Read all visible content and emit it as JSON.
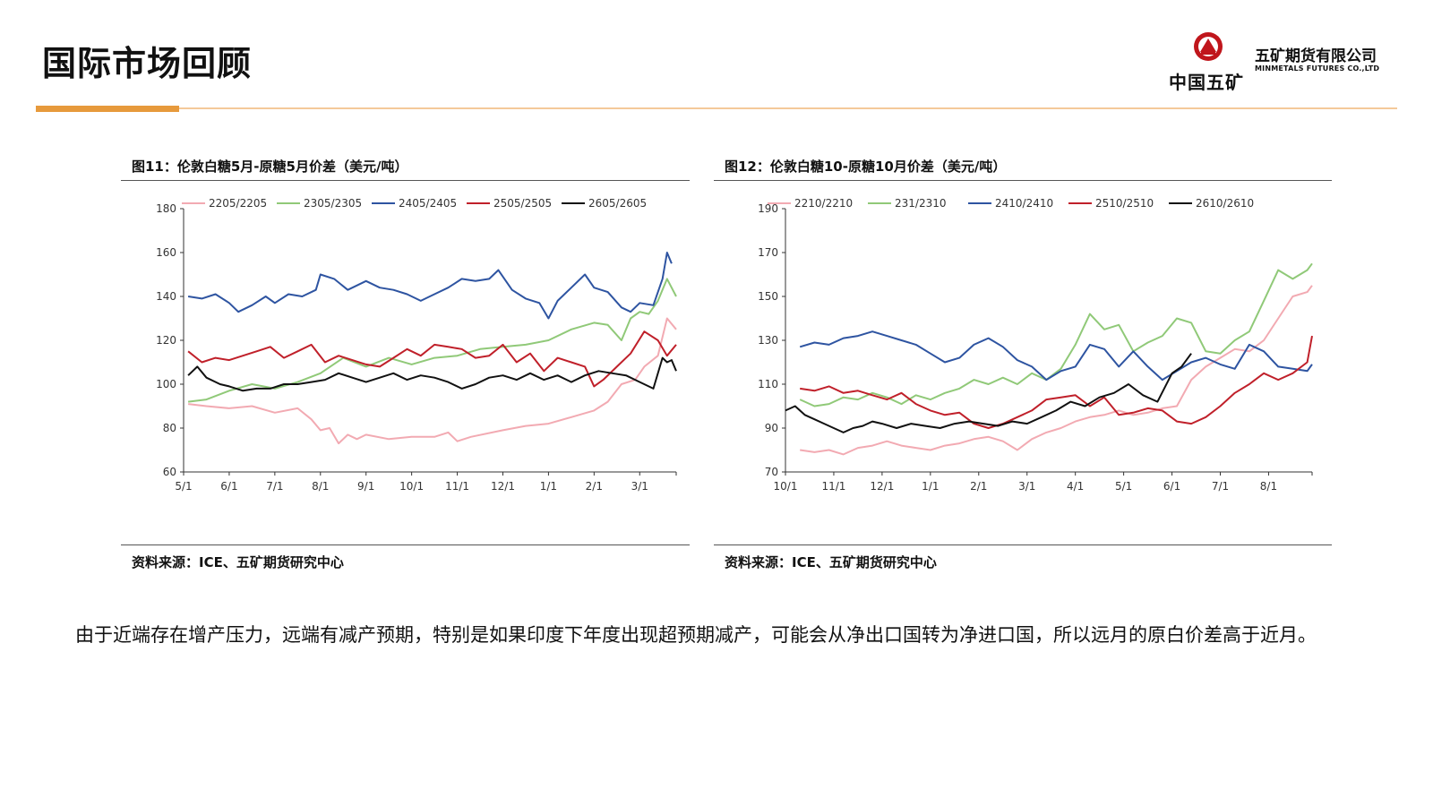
{
  "header": {
    "title": "国际市场回顾",
    "logo_text": "中国五矿",
    "brand_cn": "五矿期货有限公司",
    "brand_en": "MINMETALS FUTURES CO.,LTD",
    "accent_color": "#e79a3c",
    "logo_color": "#c0161c"
  },
  "figures": [
    {
      "title": "图11：伦敦白糖5月-原糖5月价差（美元/吨）",
      "source": "资料来源：ICE、五矿期货研究中心"
    },
    {
      "title": "图12：伦敦白糖10-原糖10月价差（美元/吨）",
      "source": "资料来源：ICE、五矿期货研究中心"
    }
  ],
  "caption": "由于近端存在增产压力，远端有减产预期，特别是如果印度下年度出现超预期减产，可能会从净出口国转为净进口国，所以远月的原白价差高于近月。",
  "chart_data": [
    {
      "type": "line",
      "xlabel": "",
      "ylabel": "",
      "xlim": [
        0,
        10.8
      ],
      "ylim": [
        60,
        180
      ],
      "yticks": [
        60,
        80,
        100,
        120,
        140,
        160,
        180
      ],
      "xticks": [
        {
          "pos": 0,
          "label": "5/1"
        },
        {
          "pos": 1,
          "label": "6/1"
        },
        {
          "pos": 2,
          "label": "7/1"
        },
        {
          "pos": 3,
          "label": "8/1"
        },
        {
          "pos": 4,
          "label": "9/1"
        },
        {
          "pos": 5,
          "label": "10/1"
        },
        {
          "pos": 6,
          "label": "11/1"
        },
        {
          "pos": 7,
          "label": "12/1"
        },
        {
          "pos": 8,
          "label": "1/1"
        },
        {
          "pos": 9,
          "label": "2/1"
        },
        {
          "pos": 10,
          "label": "3/1"
        }
      ],
      "legend_position": "top",
      "series": [
        {
          "name": "2205/2205",
          "color": "#f2aab2",
          "x": [
            0.1,
            0.5,
            1.0,
            1.5,
            2.0,
            2.5,
            2.8,
            3.0,
            3.2,
            3.4,
            3.6,
            3.8,
            4.0,
            4.5,
            5.0,
            5.5,
            5.8,
            6.0,
            6.3,
            7.0,
            7.5,
            8.0,
            8.5,
            9.0,
            9.3,
            9.6,
            9.9,
            10.1,
            10.4,
            10.6,
            10.8
          ],
          "y": [
            91,
            90,
            89,
            90,
            87,
            89,
            84,
            79,
            80,
            73,
            77,
            75,
            77,
            75,
            76,
            76,
            78,
            74,
            76,
            79,
            81,
            82,
            85,
            88,
            92,
            100,
            102,
            108,
            113,
            130,
            125
          ]
        },
        {
          "name": "2305/2305",
          "color": "#90c978",
          "x": [
            0.1,
            0.5,
            1.0,
            1.5,
            2.0,
            2.5,
            3.0,
            3.5,
            4.0,
            4.5,
            5.0,
            5.5,
            6.0,
            6.5,
            7.0,
            7.5,
            8.0,
            8.5,
            9.0,
            9.3,
            9.6,
            9.8,
            10.0,
            10.2,
            10.4,
            10.6,
            10.8
          ],
          "y": [
            92,
            93,
            97,
            100,
            98,
            101,
            105,
            112,
            108,
            112,
            109,
            112,
            113,
            116,
            117,
            118,
            120,
            125,
            128,
            127,
            120,
            130,
            133,
            132,
            138,
            148,
            140
          ]
        },
        {
          "name": "2405/2405",
          "color": "#2e54a1",
          "x": [
            0.1,
            0.4,
            0.7,
            1.0,
            1.2,
            1.5,
            1.8,
            2.0,
            2.3,
            2.6,
            2.9,
            3.0,
            3.3,
            3.6,
            4.0,
            4.3,
            4.6,
            4.9,
            5.2,
            5.5,
            5.8,
            6.1,
            6.4,
            6.7,
            6.9,
            7.2,
            7.5,
            7.8,
            8.0,
            8.2,
            8.5,
            8.8,
            9.0,
            9.3,
            9.6,
            9.8,
            10.0,
            10.3,
            10.5,
            10.6,
            10.7
          ],
          "y": [
            140,
            139,
            141,
            137,
            133,
            136,
            140,
            137,
            141,
            140,
            143,
            150,
            148,
            143,
            147,
            144,
            143,
            141,
            138,
            141,
            144,
            148,
            147,
            148,
            152,
            143,
            139,
            137,
            130,
            138,
            144,
            150,
            144,
            142,
            135,
            133,
            137,
            136,
            148,
            160,
            155
          ]
        },
        {
          "name": "2505/2505",
          "color": "#c0202a",
          "x": [
            0.1,
            0.4,
            0.7,
            1.0,
            1.3,
            1.6,
            1.9,
            2.2,
            2.5,
            2.8,
            3.1,
            3.4,
            3.7,
            4.0,
            4.3,
            4.6,
            4.9,
            5.2,
            5.5,
            5.8,
            6.1,
            6.4,
            6.7,
            7.0,
            7.3,
            7.6,
            7.9,
            8.2,
            8.5,
            8.8,
            9.0,
            9.2,
            9.5,
            9.8,
            10.1,
            10.4,
            10.6,
            10.8
          ],
          "y": [
            115,
            110,
            112,
            111,
            113,
            115,
            117,
            112,
            115,
            118,
            110,
            113,
            111,
            109,
            108,
            112,
            116,
            113,
            118,
            117,
            116,
            112,
            113,
            118,
            110,
            114,
            106,
            112,
            110,
            108,
            99,
            102,
            108,
            114,
            124,
            120,
            113,
            118
          ]
        },
        {
          "name": "2605/2605",
          "color": "#111111",
          "x": [
            0.1,
            0.3,
            0.5,
            0.8,
            1.0,
            1.3,
            1.6,
            1.9,
            2.2,
            2.5,
            2.8,
            3.1,
            3.4,
            3.7,
            4.0,
            4.3,
            4.6,
            4.9,
            5.2,
            5.5,
            5.8,
            6.1,
            6.4,
            6.7,
            7.0,
            7.3,
            7.6,
            7.9,
            8.2,
            8.5,
            8.8,
            9.1,
            9.4,
            9.7,
            10.0,
            10.3,
            10.5,
            10.6,
            10.7,
            10.8
          ],
          "y": [
            104,
            108,
            103,
            100,
            99,
            97,
            98,
            98,
            100,
            100,
            101,
            102,
            105,
            103,
            101,
            103,
            105,
            102,
            104,
            103,
            101,
            98,
            100,
            103,
            104,
            102,
            105,
            102,
            104,
            101,
            104,
            106,
            105,
            104,
            101,
            98,
            112,
            110,
            111,
            106
          ]
        }
      ]
    },
    {
      "type": "line",
      "xlabel": "",
      "ylabel": "",
      "xlim": [
        0,
        10.9
      ],
      "ylim": [
        70,
        190
      ],
      "yticks": [
        70,
        90,
        110,
        130,
        150,
        170,
        190
      ],
      "xticks": [
        {
          "pos": 0,
          "label": "10/1"
        },
        {
          "pos": 1,
          "label": "11/1"
        },
        {
          "pos": 2,
          "label": "12/1"
        },
        {
          "pos": 3,
          "label": "1/1"
        },
        {
          "pos": 4,
          "label": "2/1"
        },
        {
          "pos": 5,
          "label": "3/1"
        },
        {
          "pos": 6,
          "label": "4/1"
        },
        {
          "pos": 7,
          "label": "5/1"
        },
        {
          "pos": 8,
          "label": "6/1"
        },
        {
          "pos": 9,
          "label": "7/1"
        },
        {
          "pos": 10,
          "label": "8/1"
        }
      ],
      "legend_position": "top",
      "series": [
        {
          "name": "2210/2210",
          "color": "#f2aab2",
          "x": [
            0.3,
            0.6,
            0.9,
            1.2,
            1.5,
            1.8,
            2.1,
            2.4,
            2.7,
            3.0,
            3.3,
            3.6,
            3.9,
            4.2,
            4.5,
            4.8,
            5.1,
            5.4,
            5.7,
            6.0,
            6.3,
            6.6,
            6.9,
            7.2,
            7.5,
            7.8,
            8.1,
            8.4,
            8.7,
            9.0,
            9.3,
            9.6,
            9.9,
            10.2,
            10.5,
            10.8,
            10.9
          ],
          "y": [
            80,
            79,
            80,
            78,
            81,
            82,
            84,
            82,
            81,
            80,
            82,
            83,
            85,
            86,
            84,
            80,
            85,
            88,
            90,
            93,
            95,
            96,
            98,
            96,
            97,
            99,
            100,
            112,
            118,
            122,
            126,
            125,
            130,
            140,
            150,
            152,
            155
          ]
        },
        {
          "name": "231/2310",
          "color": "#90c978",
          "x": [
            0.3,
            0.6,
            0.9,
            1.2,
            1.5,
            1.8,
            2.1,
            2.4,
            2.7,
            3.0,
            3.3,
            3.6,
            3.9,
            4.2,
            4.5,
            4.8,
            5.1,
            5.4,
            5.7,
            6.0,
            6.3,
            6.6,
            6.9,
            7.2,
            7.5,
            7.8,
            8.1,
            8.4,
            8.7,
            9.0,
            9.3,
            9.6,
            9.9,
            10.2,
            10.5,
            10.8,
            10.9
          ],
          "y": [
            103,
            100,
            101,
            104,
            103,
            106,
            104,
            101,
            105,
            103,
            106,
            108,
            112,
            110,
            113,
            110,
            115,
            112,
            117,
            128,
            142,
            135,
            137,
            125,
            129,
            132,
            140,
            138,
            125,
            124,
            130,
            134,
            148,
            162,
            158,
            162,
            165
          ]
        },
        {
          "name": "2410/2410",
          "color": "#2e54a1",
          "x": [
            0.3,
            0.6,
            0.9,
            1.2,
            1.5,
            1.8,
            2.1,
            2.4,
            2.7,
            3.0,
            3.3,
            3.6,
            3.9,
            4.2,
            4.5,
            4.8,
            5.1,
            5.4,
            5.7,
            6.0,
            6.3,
            6.6,
            6.9,
            7.2,
            7.5,
            7.8,
            8.1,
            8.4,
            8.7,
            9.0,
            9.3,
            9.6,
            9.9,
            10.2,
            10.5,
            10.8,
            10.9
          ],
          "y": [
            127,
            129,
            128,
            131,
            132,
            134,
            132,
            130,
            128,
            124,
            120,
            122,
            128,
            131,
            127,
            121,
            118,
            112,
            116,
            118,
            128,
            126,
            118,
            125,
            118,
            112,
            116,
            120,
            122,
            119,
            117,
            128,
            125,
            118,
            117,
            116,
            119
          ]
        },
        {
          "name": "2510/2510",
          "color": "#c0202a",
          "x": [
            0.3,
            0.6,
            0.9,
            1.2,
            1.5,
            1.8,
            2.1,
            2.4,
            2.7,
            3.0,
            3.3,
            3.6,
            3.9,
            4.2,
            4.5,
            4.8,
            5.1,
            5.4,
            5.7,
            6.0,
            6.3,
            6.6,
            6.9,
            7.2,
            7.5,
            7.8,
            8.1,
            8.4,
            8.7,
            9.0,
            9.3,
            9.6,
            9.9,
            10.2,
            10.5,
            10.8,
            10.9
          ],
          "y": [
            108,
            107,
            109,
            106,
            107,
            105,
            103,
            106,
            101,
            98,
            96,
            97,
            92,
            90,
            92,
            95,
            98,
            103,
            104,
            105,
            100,
            104,
            96,
            97,
            99,
            98,
            93,
            92,
            95,
            100,
            106,
            110,
            115,
            112,
            115,
            120,
            132
          ]
        },
        {
          "name": "2610/2610",
          "color": "#111111",
          "x": [
            0.0,
            0.2,
            0.4,
            0.6,
            0.8,
            1.0,
            1.2,
            1.4,
            1.6,
            1.8,
            2.0,
            2.3,
            2.6,
            2.9,
            3.2,
            3.5,
            3.8,
            4.1,
            4.4,
            4.7,
            5.0,
            5.3,
            5.6,
            5.9,
            6.2,
            6.5,
            6.8,
            7.1,
            7.4,
            7.7,
            8.0,
            8.2,
            8.4
          ],
          "y": [
            98,
            100,
            96,
            94,
            92,
            90,
            88,
            90,
            91,
            93,
            92,
            90,
            92,
            91,
            90,
            92,
            93,
            92,
            91,
            93,
            92,
            95,
            98,
            102,
            100,
            104,
            106,
            110,
            105,
            102,
            115,
            118,
            124
          ]
        }
      ]
    }
  ]
}
